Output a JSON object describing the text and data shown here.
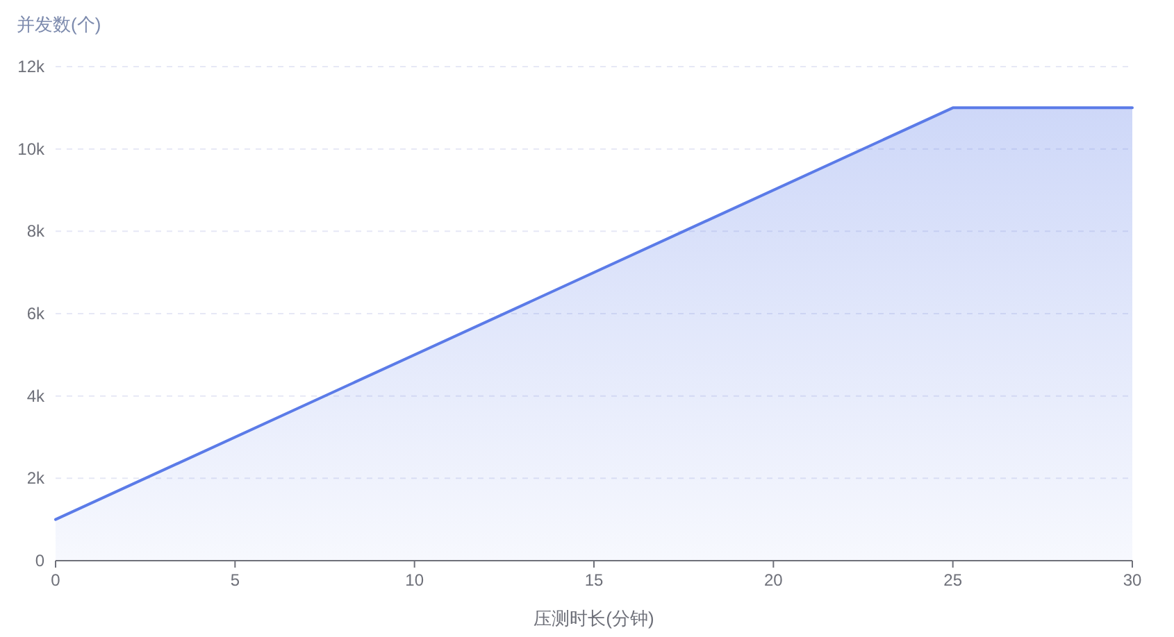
{
  "chart_data": {
    "type": "area",
    "xlabel": "压测时长(分钟)",
    "ylabel": "并发数(个)",
    "x": [
      0,
      25,
      30
    ],
    "series": [
      {
        "color": "#5b7be8",
        "values": [
          1000,
          11000,
          11000
        ]
      }
    ],
    "xlim": [
      0,
      30
    ],
    "xticks": [
      0,
      5,
      10,
      15,
      20,
      25,
      30
    ],
    "ylim": [
      0,
      12000
    ],
    "yticks": [
      0,
      {
        "value": 2000,
        "label": "2k"
      },
      {
        "value": 4000,
        "label": "4k"
      },
      {
        "value": 6000,
        "label": "6k"
      },
      {
        "value": 8000,
        "label": "8k"
      },
      {
        "value": 10000,
        "label": "10k"
      },
      {
        "value": 12000,
        "label": "12k"
      }
    ],
    "grid": "y"
  }
}
